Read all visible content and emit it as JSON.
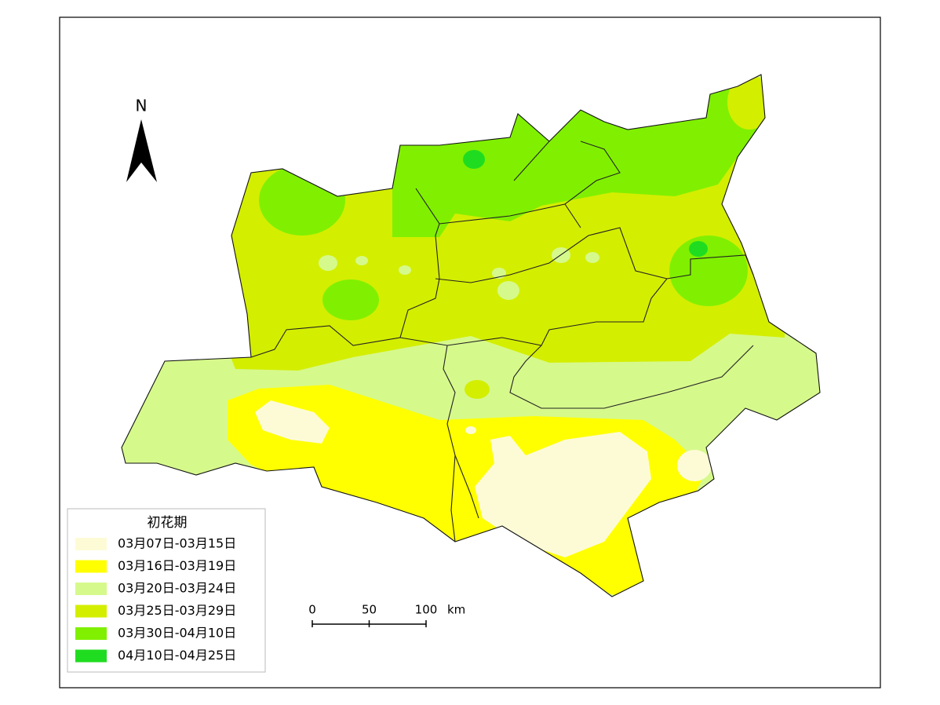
{
  "legend": {
    "title": "初花期",
    "items": [
      {
        "label": "03月07日-03月15日",
        "color": "#fdfbd6"
      },
      {
        "label": "03月16日-03月19日",
        "color": "#ffff00"
      },
      {
        "label": "03月20日-03月24日",
        "color": "#d6f98c"
      },
      {
        "label": "03月25日-03月29日",
        "color": "#d4ee00"
      },
      {
        "label": "03月30日-04月10日",
        "color": "#80f000"
      },
      {
        "label": "04月10日-04月25日",
        "color": "#20dc20"
      }
    ]
  },
  "north_arrow": {
    "label": "N"
  },
  "scale_bar": {
    "ticks": [
      0,
      50,
      100
    ],
    "unit": "km"
  }
}
